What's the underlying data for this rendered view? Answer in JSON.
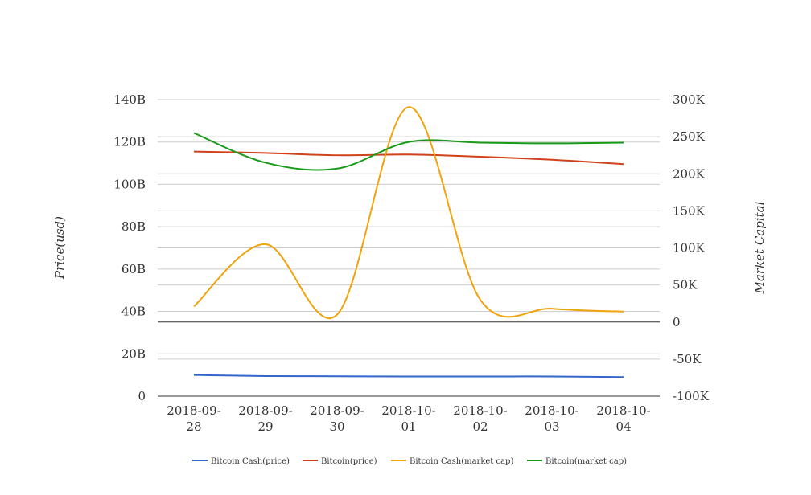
{
  "chart_data": {
    "type": "line",
    "x": [
      "2018-09-28",
      "2018-09-29",
      "2018-09-30",
      "2018-10-01",
      "2018-10-02",
      "2018-10-03",
      "2018-10-04"
    ],
    "x_tick_labels": [
      [
        "2018-09-",
        "28"
      ],
      [
        "2018-09-",
        "29"
      ],
      [
        "2018-09-",
        "30"
      ],
      [
        "2018-10-",
        "01"
      ],
      [
        "2018-10-",
        "02"
      ],
      [
        "2018-10-",
        "03"
      ],
      [
        "2018-10-",
        "04"
      ]
    ],
    "y_left": {
      "label": "Price(usd)",
      "range": [
        0,
        140000000000
      ],
      "ticks": [
        0,
        20000000000,
        40000000000,
        60000000000,
        80000000000,
        100000000000,
        120000000000,
        140000000000
      ],
      "tick_labels": [
        "0",
        "20B",
        "40B",
        "60B",
        "80B",
        "100B",
        "120B",
        "140B"
      ]
    },
    "y_right": {
      "label": "Market Capital",
      "range": [
        -100000,
        300000
      ],
      "ticks": [
        -100000,
        -50000,
        0,
        50000,
        100000,
        150000,
        200000,
        250000,
        300000
      ],
      "tick_labels": [
        "-100K",
        "-50K",
        "0",
        "50K",
        "100K",
        "150K",
        "200K",
        "250K",
        "300K"
      ]
    },
    "series": [
      {
        "name": "Bitcoin Cash(price)",
        "axis": "left",
        "color": "#3366cc",
        "values": [
          10000000000,
          9500000000,
          9400000000,
          9300000000,
          9300000000,
          9300000000,
          9000000000
        ]
      },
      {
        "name": "Bitcoin(price)",
        "axis": "right",
        "color": "#d0421b",
        "values": [
          230000,
          228000,
          225000,
          226000,
          223000,
          219000,
          213000
        ]
      },
      {
        "name": "Bitcoin Cash(market cap)",
        "axis": "right",
        "color": "#f0a30a",
        "values": [
          21000,
          105000,
          10000,
          290000,
          30000,
          18000,
          14000
        ]
      },
      {
        "name": "Bitcoin(market cap)",
        "axis": "right",
        "color": "#1a9a1a",
        "values": [
          255000,
          215000,
          207000,
          243000,
          242000,
          241000,
          242000
        ]
      }
    ],
    "grid": true,
    "legend_position": "bottom"
  }
}
